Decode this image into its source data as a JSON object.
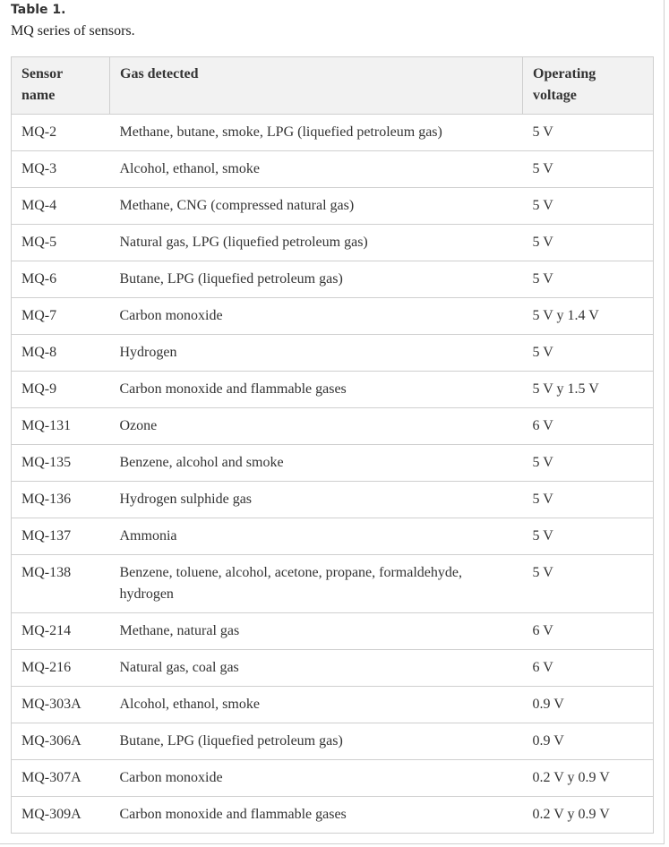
{
  "caption": {
    "label": "Table 1.",
    "text": "MQ series of sensors."
  },
  "table": {
    "headers": [
      "Sensor name",
      "Gas detected",
      "Operating voltage"
    ],
    "rows": [
      [
        "MQ-2",
        "Methane, butane, smoke, LPG (liquefied petroleum gas)",
        "5 V"
      ],
      [
        "MQ-3",
        "Alcohol, ethanol, smoke",
        "5 V"
      ],
      [
        "MQ-4",
        "Methane, CNG (compressed natural gas)",
        "5 V"
      ],
      [
        "MQ-5",
        "Natural gas, LPG (liquefied petroleum gas)",
        "5 V"
      ],
      [
        "MQ-6",
        "Butane, LPG (liquefied petroleum gas)",
        "5 V"
      ],
      [
        "MQ-7",
        "Carbon monoxide",
        "5 V y 1.4 V"
      ],
      [
        "MQ-8",
        "Hydrogen",
        "5 V"
      ],
      [
        "MQ-9",
        "Carbon monoxide and flammable gases",
        "5 V y 1.5 V"
      ],
      [
        "MQ-131",
        "Ozone",
        "6 V"
      ],
      [
        "MQ-135",
        "Benzene, alcohol and smoke",
        "5 V"
      ],
      [
        "MQ-136",
        "Hydrogen sulphide gas",
        "5 V"
      ],
      [
        "MQ-137",
        "Ammonia",
        "5 V"
      ],
      [
        "MQ-138",
        "Benzene, toluene, alcohol, acetone, propane, formaldehyde, hydrogen",
        "5 V"
      ],
      [
        "MQ-214",
        "Methane, natural gas",
        "6 V"
      ],
      [
        "MQ-216",
        "Natural gas, coal gas",
        "6 V"
      ],
      [
        "MQ-303A",
        "Alcohol, ethanol, smoke",
        "0.9 V"
      ],
      [
        "MQ-306A",
        "Butane, LPG (liquefied petroleum gas)",
        "0.9 V"
      ],
      [
        "MQ-307A",
        "Carbon monoxide",
        "0.2 V y 0.9 V"
      ],
      [
        "MQ-309A",
        "Carbon monoxide and flammable gases",
        "0.2 V y 0.9 V"
      ]
    ]
  }
}
